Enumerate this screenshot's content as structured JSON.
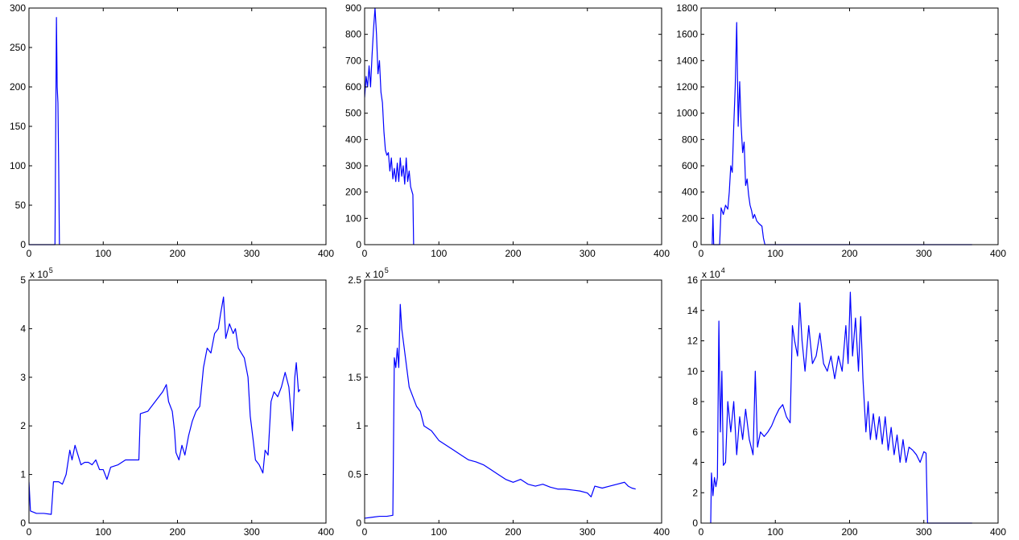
{
  "chart_data": [
    {
      "type": "line",
      "color": "#0000ff",
      "xlim": [
        0,
        400
      ],
      "ylim": [
        0,
        300
      ],
      "xticks": [
        0,
        100,
        200,
        300,
        400
      ],
      "yticks": [
        0,
        50,
        100,
        150,
        200,
        250,
        300
      ],
      "x": [
        0,
        35,
        37,
        38,
        39,
        40,
        41
      ],
      "values": [
        0,
        0,
        288,
        200,
        180,
        100,
        0
      ]
    },
    {
      "type": "line",
      "color": "#0000ff",
      "xlim": [
        0,
        400
      ],
      "ylim": [
        0,
        900
      ],
      "xticks": [
        0,
        100,
        200,
        300,
        400
      ],
      "yticks": [
        0,
        100,
        200,
        300,
        400,
        500,
        600,
        700,
        800,
        900
      ],
      "x": [
        0,
        2,
        4,
        6,
        8,
        10,
        12,
        14,
        16,
        18,
        20,
        22,
        24,
        26,
        28,
        30,
        32,
        34,
        36,
        38,
        40,
        42,
        44,
        46,
        48,
        50,
        52,
        54,
        56,
        58,
        60,
        62,
        64,
        65,
        66
      ],
      "values": [
        560,
        640,
        600,
        680,
        600,
        720,
        820,
        900,
        800,
        650,
        700,
        580,
        540,
        430,
        360,
        340,
        350,
        280,
        330,
        250,
        290,
        240,
        310,
        240,
        330,
        260,
        300,
        230,
        330,
        240,
        280,
        220,
        200,
        190,
        0
      ]
    },
    {
      "type": "line",
      "color": "#0000ff",
      "xlim": [
        0,
        400
      ],
      "ylim": [
        0,
        1800
      ],
      "xticks": [
        0,
        100,
        200,
        300,
        400
      ],
      "yticks": [
        0,
        200,
        400,
        600,
        800,
        1000,
        1200,
        1400,
        1600,
        1800
      ],
      "x": [
        15,
        16,
        17,
        25,
        27,
        30,
        33,
        36,
        38,
        40,
        42,
        44,
        46,
        48,
        50,
        52,
        54,
        56,
        58,
        60,
        62,
        64,
        66,
        68,
        70,
        72,
        75,
        78,
        82,
        84,
        86,
        365
      ],
      "values": [
        0,
        230,
        0,
        0,
        280,
        230,
        300,
        270,
        400,
        600,
        550,
        900,
        1200,
        1690,
        900,
        1240,
        900,
        700,
        780,
        450,
        500,
        380,
        300,
        260,
        200,
        230,
        180,
        160,
        140,
        50,
        0,
        0
      ]
    },
    {
      "type": "line",
      "color": "#0000ff",
      "xlim": [
        0,
        400
      ],
      "ylim": [
        0,
        500000
      ],
      "xticks": [
        0,
        100,
        200,
        300,
        400
      ],
      "yticks": [
        {
          "value": 0,
          "label": "0"
        },
        {
          "value": 100000,
          "label": "1"
        },
        {
          "value": 200000,
          "label": "2"
        },
        {
          "value": 300000,
          "label": "3"
        },
        {
          "value": 400000,
          "label": "4"
        },
        {
          "value": 500000,
          "label": "5"
        }
      ],
      "multiplier_base": "x 10",
      "multiplier_exponent": "5",
      "x": [
        0,
        2,
        10,
        20,
        30,
        33,
        40,
        45,
        50,
        55,
        58,
        62,
        66,
        70,
        75,
        80,
        85,
        90,
        95,
        100,
        105,
        110,
        120,
        130,
        140,
        148,
        150,
        160,
        170,
        180,
        185,
        188,
        193,
        196,
        198,
        202,
        206,
        210,
        215,
        220,
        225,
        230,
        235,
        240,
        245,
        250,
        255,
        258,
        262,
        265,
        270,
        275,
        278,
        282,
        290,
        295,
        298,
        302,
        305,
        310,
        315,
        318,
        322,
        326,
        330,
        335,
        340,
        345,
        350,
        355,
        358,
        360,
        363,
        365
      ],
      "values": [
        85000,
        25000,
        20000,
        20000,
        18000,
        85000,
        85000,
        80000,
        100000,
        150000,
        130000,
        160000,
        140000,
        120000,
        125000,
        125000,
        120000,
        130000,
        110000,
        110000,
        90000,
        115000,
        120000,
        130000,
        130000,
        130000,
        225000,
        230000,
        250000,
        270000,
        285000,
        250000,
        230000,
        190000,
        145000,
        130000,
        160000,
        140000,
        180000,
        210000,
        230000,
        240000,
        320000,
        360000,
        350000,
        390000,
        400000,
        430000,
        465000,
        380000,
        410000,
        390000,
        400000,
        360000,
        340000,
        300000,
        220000,
        170000,
        130000,
        120000,
        103000,
        150000,
        140000,
        250000,
        270000,
        260000,
        280000,
        310000,
        280000,
        190000,
        300000,
        330000,
        270000,
        275000
      ]
    },
    {
      "type": "line",
      "color": "#0000ff",
      "xlim": [
        0,
        400
      ],
      "ylim": [
        0,
        250000
      ],
      "xticks": [
        0,
        100,
        200,
        300,
        400
      ],
      "yticks": [
        {
          "value": 0,
          "label": "0"
        },
        {
          "value": 50000,
          "label": "0.5"
        },
        {
          "value": 100000,
          "label": "1"
        },
        {
          "value": 150000,
          "label": "1.5"
        },
        {
          "value": 200000,
          "label": "2"
        },
        {
          "value": 250000,
          "label": "2.5"
        }
      ],
      "multiplier_base": "x 10",
      "multiplier_exponent": "5",
      "x": [
        0,
        10,
        20,
        30,
        38,
        40,
        42,
        44,
        46,
        48,
        50,
        55,
        60,
        65,
        70,
        75,
        80,
        90,
        100,
        110,
        120,
        130,
        140,
        150,
        160,
        170,
        180,
        190,
        200,
        210,
        220,
        230,
        240,
        250,
        260,
        270,
        280,
        290,
        300,
        305,
        310,
        320,
        330,
        340,
        350,
        355,
        360,
        365
      ],
      "values": [
        5000,
        6000,
        7000,
        7000,
        8000,
        170000,
        160000,
        180000,
        160000,
        225000,
        200000,
        170000,
        140000,
        130000,
        120000,
        115000,
        100000,
        95000,
        85000,
        80000,
        75000,
        70000,
        65000,
        63000,
        60000,
        55000,
        50000,
        45000,
        42000,
        45000,
        40000,
        38000,
        40000,
        37000,
        35000,
        35000,
        34000,
        33000,
        31000,
        27000,
        38000,
        36000,
        38000,
        40000,
        42000,
        38000,
        36000,
        35000
      ]
    },
    {
      "type": "line",
      "color": "#0000ff",
      "xlim": [
        0,
        400
      ],
      "ylim": [
        0,
        160000
      ],
      "xticks": [
        0,
        100,
        200,
        300,
        400
      ],
      "yticks": [
        {
          "value": 0,
          "label": "0"
        },
        {
          "value": 20000,
          "label": "2"
        },
        {
          "value": 40000,
          "label": "4"
        },
        {
          "value": 60000,
          "label": "6"
        },
        {
          "value": 80000,
          "label": "8"
        },
        {
          "value": 100000,
          "label": "10"
        },
        {
          "value": 120000,
          "label": "12"
        },
        {
          "value": 140000,
          "label": "14"
        },
        {
          "value": 160000,
          "label": "16"
        }
      ],
      "multiplier_base": "x 10",
      "multiplier_exponent": "4",
      "x": [
        13,
        14,
        16,
        18,
        20,
        22,
        24,
        26,
        28,
        30,
        33,
        36,
        40,
        44,
        48,
        52,
        56,
        60,
        65,
        70,
        73,
        76,
        80,
        85,
        90,
        95,
        100,
        105,
        110,
        115,
        120,
        123,
        126,
        130,
        133,
        136,
        140,
        145,
        150,
        155,
        160,
        165,
        170,
        175,
        180,
        185,
        190,
        195,
        198,
        201,
        204,
        208,
        212,
        215,
        218,
        222,
        225,
        228,
        232,
        236,
        240,
        244,
        248,
        252,
        256,
        260,
        264,
        268,
        272,
        276,
        280,
        285,
        290,
        295,
        300,
        303,
        305,
        365
      ],
      "values": [
        0,
        33000,
        18000,
        30000,
        24000,
        30000,
        133000,
        60000,
        100000,
        38000,
        40000,
        80000,
        60000,
        80000,
        45000,
        70000,
        55000,
        75000,
        55000,
        45000,
        100000,
        50000,
        60000,
        57000,
        60000,
        64000,
        70000,
        75000,
        78000,
        70000,
        66000,
        130000,
        120000,
        110000,
        145000,
        120000,
        100000,
        130000,
        105000,
        110000,
        125000,
        105000,
        100000,
        110000,
        95000,
        110000,
        100000,
        130000,
        105000,
        152000,
        110000,
        135000,
        100000,
        136000,
        95000,
        60000,
        80000,
        55000,
        72000,
        55000,
        70000,
        52000,
        70000,
        48000,
        63000,
        45000,
        58000,
        40000,
        55000,
        40000,
        50000,
        48000,
        45000,
        40000,
        47000,
        46000,
        0,
        0
      ]
    }
  ]
}
